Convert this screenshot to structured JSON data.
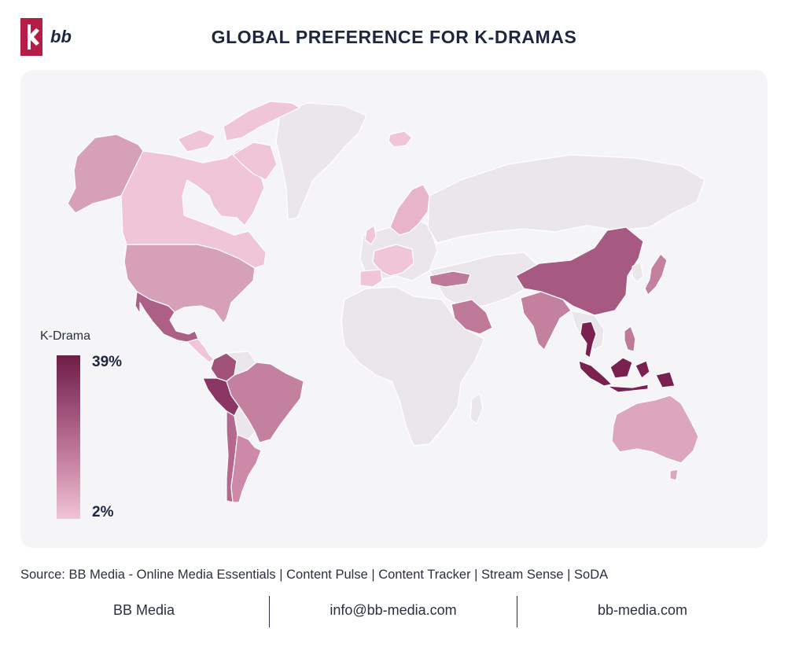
{
  "header": {
    "logo_text": "bb",
    "title": "GLOBAL PREFERENCE FOR K-DRAMAS"
  },
  "colors": {
    "brand": "#b51c46",
    "scale_high": "#6e1d45",
    "scale_mid": "#a0527a",
    "scale_low": "#f0c5d7",
    "no_data": "#ebe6e9",
    "panel_bg": "#f5f4f7"
  },
  "legend": {
    "title": "K-Drama",
    "max_label": "39%",
    "min_label": "2%"
  },
  "map_data": {
    "type": "choropleth",
    "metric": "K-Drama",
    "range": [
      2,
      39
    ],
    "regions": [
      {
        "region": "Alaska",
        "shade": "medium-light"
      },
      {
        "region": "Canada",
        "shade": "light"
      },
      {
        "region": "United States",
        "shade": "medium-light"
      },
      {
        "region": "Mexico",
        "shade": "medium"
      },
      {
        "region": "Peru",
        "shade": "high"
      },
      {
        "region": "Colombia",
        "shade": "medium"
      },
      {
        "region": "Brazil",
        "shade": "medium"
      },
      {
        "region": "Argentina",
        "shade": "medium-light"
      },
      {
        "region": "Chile",
        "shade": "medium"
      },
      {
        "region": "Western Europe",
        "shade": "light"
      },
      {
        "region": "Scandinavia",
        "shade": "light"
      },
      {
        "region": "Iceland",
        "shade": "light"
      },
      {
        "region": "Turkey",
        "shade": "medium"
      },
      {
        "region": "Saudi Arabia",
        "shade": "medium"
      },
      {
        "region": "India",
        "shade": "medium"
      },
      {
        "region": "China",
        "shade": "medium-high"
      },
      {
        "region": "Japan",
        "shade": "medium"
      },
      {
        "region": "Thailand",
        "shade": "high"
      },
      {
        "region": "Indonesia",
        "shade": "high"
      },
      {
        "region": "Philippines",
        "shade": "medium"
      },
      {
        "region": "Australia",
        "shade": "light"
      },
      {
        "region": "New Zealand",
        "shade": "light"
      }
    ]
  },
  "source": "Source: BB Media - Online Media Essentials | Content Pulse | Content Tracker | Stream Sense | SoDA",
  "footer": {
    "company": "BB Media",
    "email": "info@bb-media.com",
    "website": "bb-media.com"
  }
}
